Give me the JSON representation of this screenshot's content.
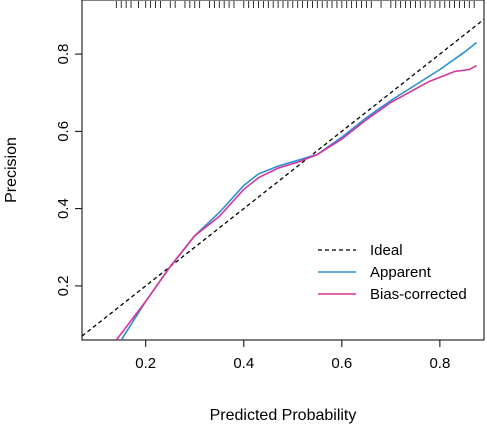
{
  "chart_data": {
    "type": "line",
    "title": "",
    "xlabel": "Predicted Probability",
    "ylabel": "Precision",
    "xlim": [
      0.07,
      0.89
    ],
    "ylim": [
      0.06,
      0.94
    ],
    "xticks": [
      "0.2",
      "0.4",
      "0.6",
      "0.8"
    ],
    "xtick_values": [
      0.2,
      0.4,
      0.6,
      0.8
    ],
    "yticks": [
      "0.2",
      "0.4",
      "0.6",
      "0.8"
    ],
    "ytick_values": [
      0.2,
      0.4,
      0.6,
      0.8
    ],
    "grid": false,
    "legend_position": "bottom-right",
    "series": [
      {
        "name": "Ideal",
        "color": "#000000",
        "dash": "dashed",
        "x": [
          0.07,
          0.89
        ],
        "y": [
          0.07,
          0.89
        ]
      },
      {
        "name": "Apparent",
        "color": "#2a8fd4",
        "dash": "solid",
        "x": [
          0.15,
          0.2,
          0.25,
          0.3,
          0.35,
          0.4,
          0.43,
          0.47,
          0.51,
          0.55,
          0.6,
          0.65,
          0.7,
          0.75,
          0.8,
          0.85,
          0.875
        ],
        "y": [
          0.06,
          0.16,
          0.25,
          0.33,
          0.39,
          0.46,
          0.49,
          0.51,
          0.525,
          0.54,
          0.585,
          0.635,
          0.68,
          0.72,
          0.76,
          0.805,
          0.83
        ]
      },
      {
        "name": "Bias-corrected",
        "color": "#d6349c",
        "dash": "solid",
        "x": [
          0.14,
          0.2,
          0.25,
          0.3,
          0.35,
          0.4,
          0.43,
          0.47,
          0.51,
          0.55,
          0.6,
          0.65,
          0.7,
          0.75,
          0.78,
          0.8,
          0.83,
          0.86,
          0.875
        ],
        "y": [
          0.06,
          0.16,
          0.25,
          0.33,
          0.38,
          0.45,
          0.48,
          0.505,
          0.52,
          0.54,
          0.58,
          0.63,
          0.675,
          0.71,
          0.73,
          0.74,
          0.755,
          0.76,
          0.77
        ]
      }
    ],
    "rug_ticks_x": [
      0.14,
      0.15,
      0.16,
      0.17,
      0.185,
      0.2,
      0.21,
      0.22,
      0.23,
      0.25,
      0.26,
      0.28,
      0.29,
      0.3,
      0.31,
      0.33,
      0.34,
      0.35,
      0.36,
      0.37,
      0.38,
      0.4,
      0.41,
      0.42,
      0.43,
      0.44,
      0.45,
      0.46,
      0.47,
      0.48,
      0.49,
      0.5,
      0.51,
      0.52,
      0.53,
      0.54,
      0.55,
      0.56,
      0.57,
      0.58,
      0.59,
      0.6,
      0.61,
      0.62,
      0.63,
      0.64,
      0.65,
      0.66,
      0.68,
      0.7,
      0.71,
      0.72,
      0.73,
      0.74,
      0.75,
      0.76,
      0.77,
      0.78,
      0.79,
      0.8,
      0.81,
      0.82,
      0.83,
      0.84,
      0.85,
      0.86,
      0.87
    ]
  }
}
